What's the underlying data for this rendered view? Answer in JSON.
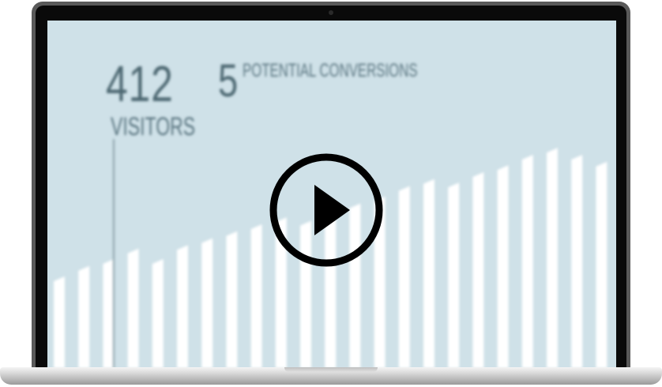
{
  "video_thumbnail": {
    "stats": {
      "visitors_count": "412",
      "visitors_label": "VISITORS",
      "conversions_count": "5",
      "conversions_label": "POTENTIAL CONVERSIONS"
    },
    "play_icon": "play-icon",
    "colors": {
      "screen_background": "#cfe1e8",
      "bars": "#ffffff",
      "text": "#4d6872",
      "play_icon": "#000000"
    },
    "chart_data": {
      "type": "bar",
      "values": [
        0.25,
        0.28,
        0.3,
        0.33,
        0.3,
        0.34,
        0.36,
        0.38,
        0.4,
        0.42,
        0.41,
        0.44,
        0.46,
        0.48,
        0.51,
        0.53,
        0.52,
        0.55,
        0.57,
        0.6,
        0.62,
        0.6,
        0.58,
        0.63,
        0.66,
        0.69,
        0.72,
        0.75
      ],
      "title": "",
      "xlabel": "",
      "ylabel": ""
    }
  }
}
